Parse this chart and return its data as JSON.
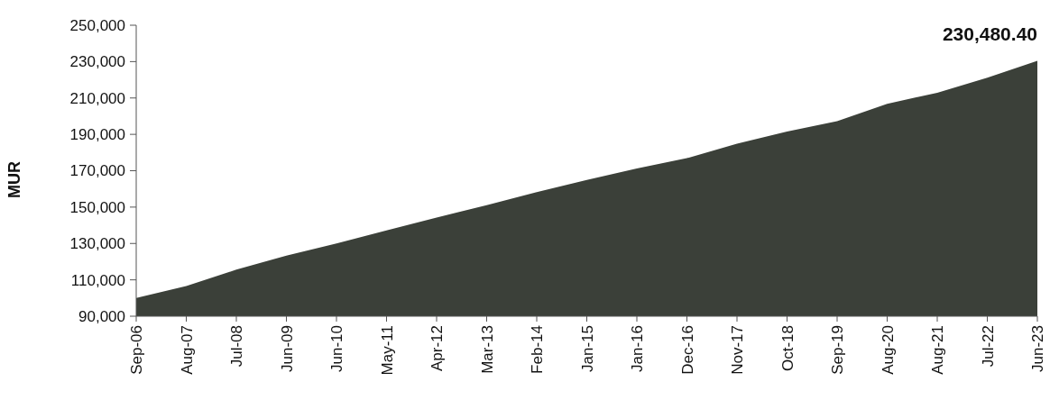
{
  "chart_data": {
    "type": "area",
    "ylabel": "MUR",
    "categories": [
      "Sep-06",
      "Aug-07",
      "Jul-08",
      "Jun-09",
      "Jun-10",
      "May-11",
      "Apr-12",
      "Mar-13",
      "Feb-14",
      "Jan-15",
      "Jan-16",
      "Dec-16",
      "Nov-17",
      "Oct-18",
      "Sep-19",
      "Aug-20",
      "Aug-21",
      "Jul-22",
      "Jun-23"
    ],
    "series": [
      {
        "color": "#3b4039",
        "values": [
          100000,
          106600,
          115600,
          123300,
          130000,
          137200,
          144300,
          151100,
          158200,
          164900,
          171200,
          176900,
          184900,
          191600,
          197300,
          206800,
          212900,
          221100,
          230480.4
        ],
        "value_labels": [
          null,
          null,
          null,
          null,
          null,
          null,
          null,
          null,
          null,
          null,
          null,
          null,
          null,
          null,
          null,
          null,
          null,
          null,
          "230,480.40"
        ]
      }
    ],
    "ylim": [
      90000,
      250000
    ],
    "yticks": [
      {
        "value": 90000,
        "label": "90,000"
      },
      {
        "value": 110000,
        "label": "110,000"
      },
      {
        "value": 130000,
        "label": "130,000"
      },
      {
        "value": 150000,
        "label": "150,000"
      },
      {
        "value": 170000,
        "label": "170,000"
      },
      {
        "value": 190000,
        "label": "190,000"
      },
      {
        "value": 210000,
        "label": "210,000"
      },
      {
        "value": 230000,
        "label": "230,000"
      },
      {
        "value": 250000,
        "label": "250,000"
      }
    ],
    "grid": false
  }
}
